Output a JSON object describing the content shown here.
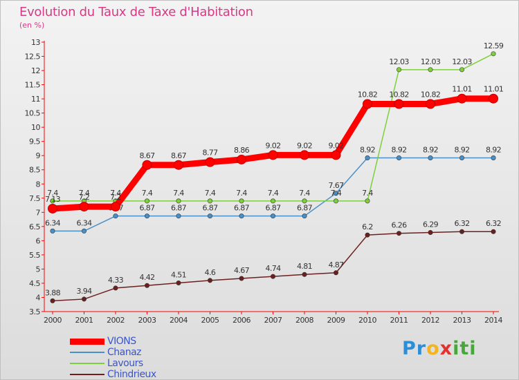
{
  "header": {
    "title": "Evolution du Taux de Taxe d'Habitation",
    "unit": "(en %)"
  },
  "chart_data": {
    "type": "line",
    "title": "Evolution du Taux de Taxe d'Habitation",
    "ylabel": "(en %)",
    "xlabel": "",
    "ylim": [
      3.5,
      13
    ],
    "y_ticks": [
      "3.5",
      "4",
      "4.5",
      "5",
      "5.5",
      "6",
      "6.5",
      "7",
      "7.5",
      "8",
      "8.5",
      "9",
      "9.5",
      "10",
      "10.5",
      "11",
      "11.5",
      "12",
      "12.5",
      "13"
    ],
    "x": [
      "2000",
      "2001",
      "2002",
      "2003",
      "2004",
      "2005",
      "2006",
      "2007",
      "2008",
      "2009",
      "2010",
      "2011",
      "2012",
      "2013",
      "2014"
    ],
    "grid": false,
    "legend_position": "bottom-left",
    "series": [
      {
        "name": "Chindrieux",
        "color": "#6b1f1f",
        "values": [
          3.88,
          3.94,
          4.33,
          4.42,
          4.51,
          4.6,
          4.67,
          4.74,
          4.81,
          4.87,
          6.2,
          6.26,
          6.29,
          6.32,
          6.32
        ],
        "labels": [
          "3.88",
          "3.94",
          "4.33",
          "4.42",
          "4.51",
          "4.6",
          "4.67",
          "4.74",
          "4.81",
          "4.87",
          "6.2",
          "6.26",
          "6.29",
          "6.32",
          "6.32"
        ]
      },
      {
        "name": "Chanaz",
        "color": "#4a90c8",
        "values": [
          6.34,
          6.34,
          6.87,
          6.87,
          6.87,
          6.87,
          6.87,
          6.87,
          6.87,
          7.67,
          8.92,
          8.92,
          8.92,
          8.92,
          8.92
        ],
        "labels": [
          "6.34",
          "6.34",
          "6.87",
          "6.87",
          "6.87",
          "6.87",
          "6.87",
          "6.87",
          "6.87",
          "7.67",
          "8.92",
          "8.92",
          "8.92",
          "8.92",
          "8.92"
        ]
      },
      {
        "name": "Lavours",
        "color": "#7ecf3a",
        "values": [
          7.4,
          7.4,
          7.4,
          7.4,
          7.4,
          7.4,
          7.4,
          7.4,
          7.4,
          7.4,
          7.4,
          12.03,
          12.03,
          12.03,
          12.59
        ],
        "labels": [
          "7.4",
          "7.4",
          "7.4",
          "7.4",
          "7.4",
          "7.4",
          "7.4",
          "7.4",
          "7.4",
          "7.4",
          "7.4",
          "12.03",
          "12.03",
          "12.03",
          "12.59"
        ]
      },
      {
        "name": "VIONS",
        "color": "#ff0000",
        "values": [
          7.13,
          7.2,
          7.2,
          8.67,
          8.67,
          8.77,
          8.86,
          9.02,
          9.02,
          9.02,
          10.82,
          10.82,
          10.82,
          11.01,
          11.01
        ],
        "labels": [
          "7.13",
          "7.2",
          "7.2",
          "8.67",
          "8.67",
          "8.77",
          "8.86",
          "9.02",
          "9.02",
          "9.02",
          "10.82",
          "10.82",
          "10.82",
          "11.01",
          "11.01"
        ]
      }
    ]
  },
  "legend": [
    {
      "label": "VIONS",
      "color": "#ff0000"
    },
    {
      "label": "Chanaz",
      "color": "#4a90c8"
    },
    {
      "label": "Lavours",
      "color": "#7ecf3a"
    },
    {
      "label": "Chindrieux",
      "color": "#6b1f1f"
    }
  ],
  "logo": {
    "pr": "Pr",
    "o": "o",
    "x": "x",
    "it": "iti"
  }
}
